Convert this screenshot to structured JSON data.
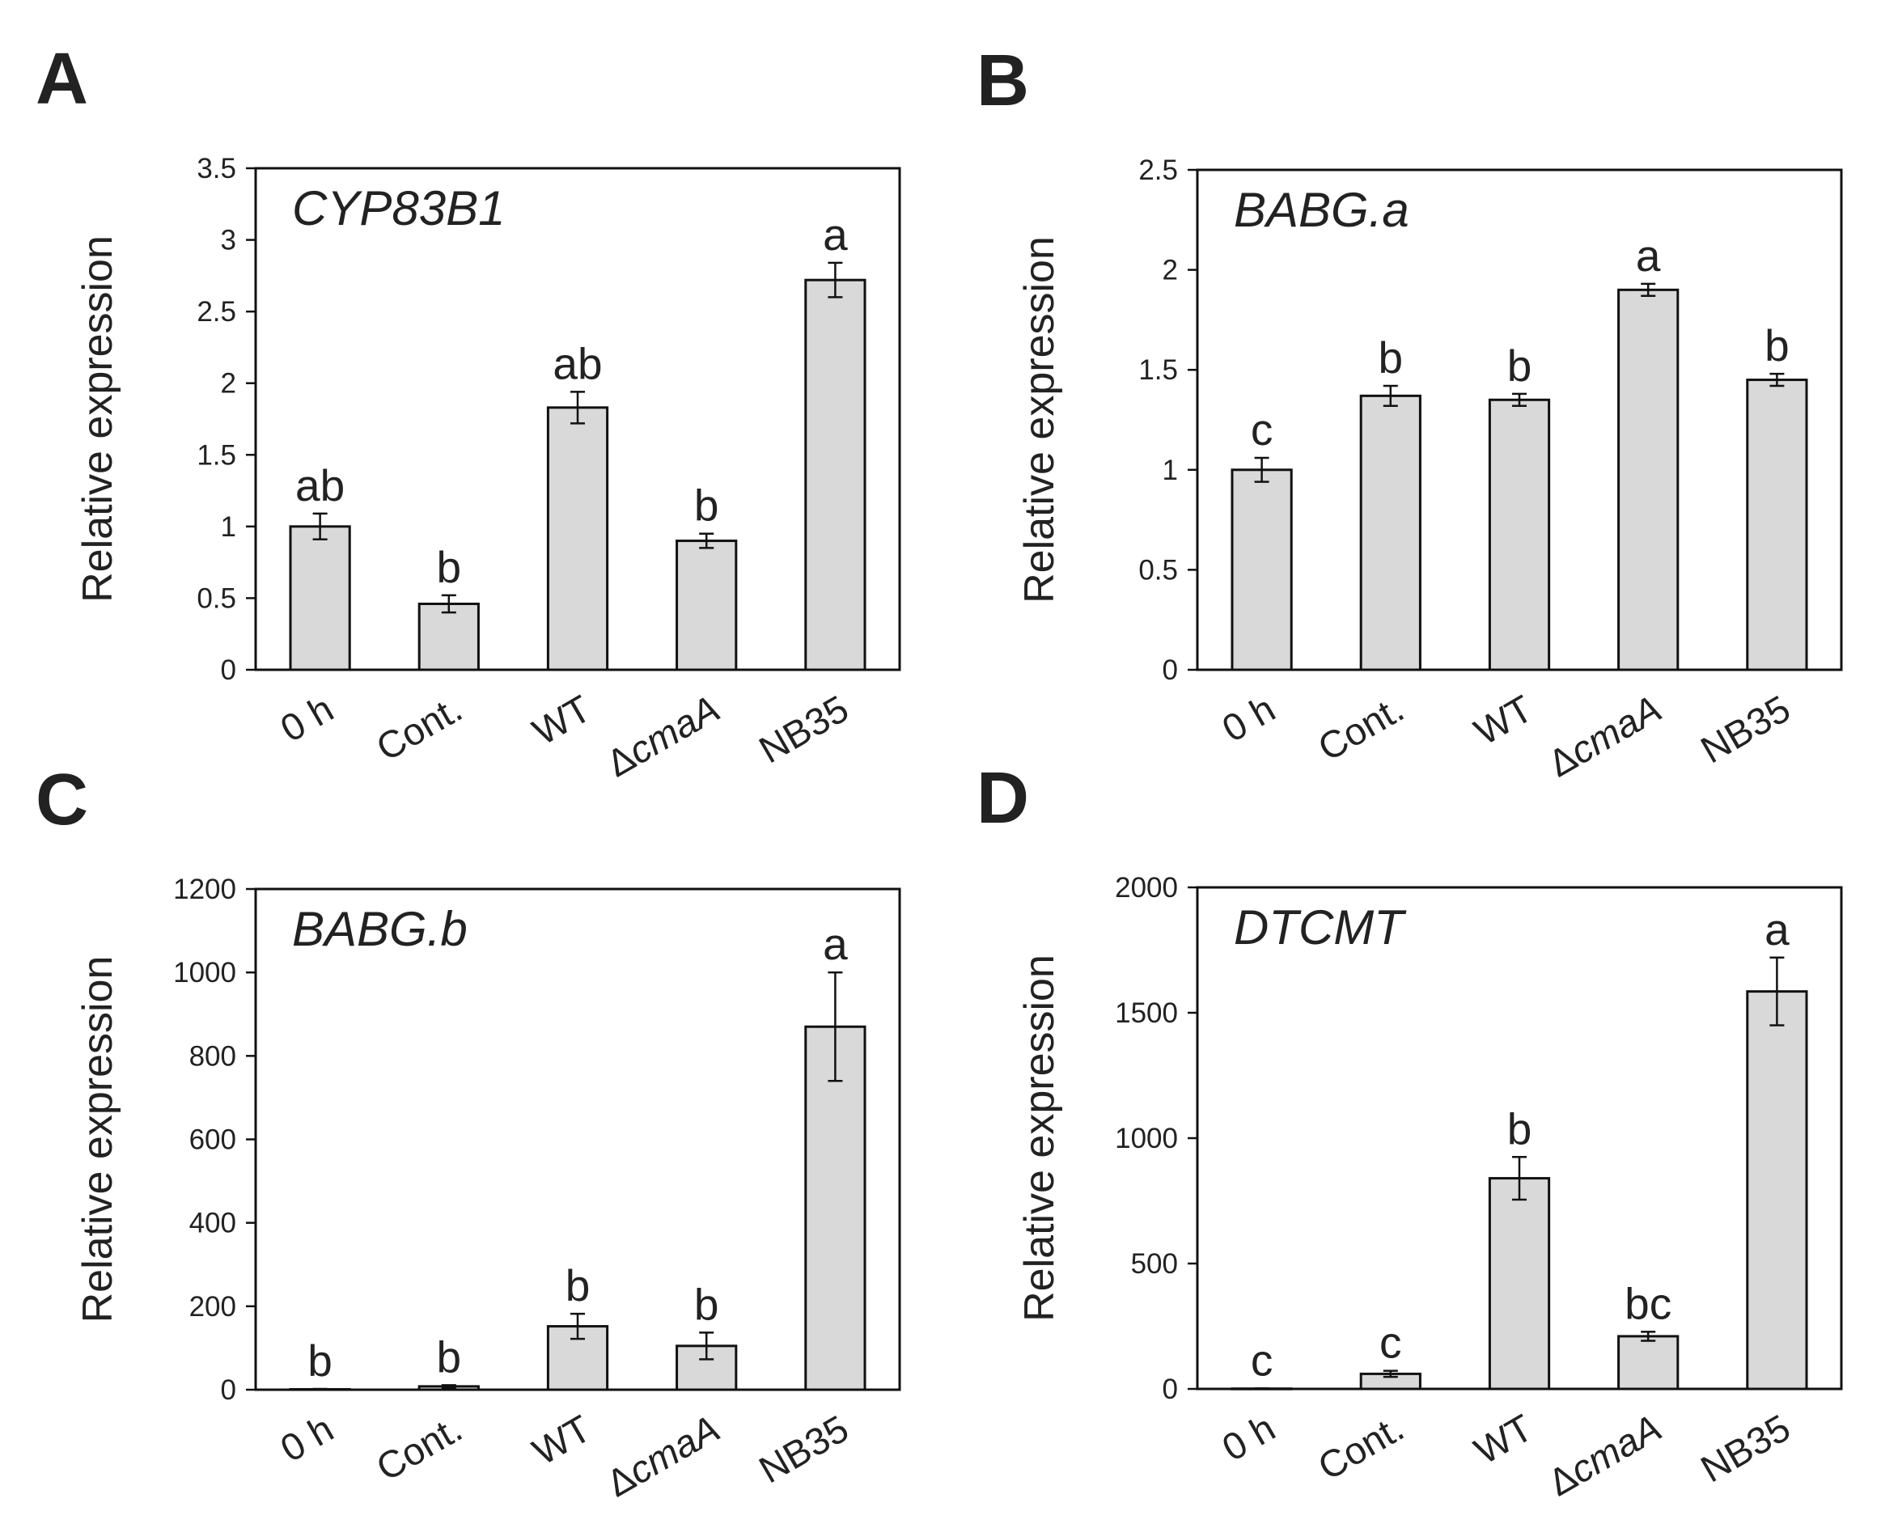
{
  "figure": {
    "categories": [
      "0 h",
      "Cont.",
      "WT",
      "ΔcmaA",
      "NB35"
    ],
    "ylabel": "Relative expression",
    "bar_color": "#d9d9d9",
    "edge_color": "#111111"
  },
  "chart_data": [
    {
      "panel": "A",
      "type": "bar",
      "title": "CYP83B1",
      "categories": [
        "0 h",
        "Cont.",
        "WT",
        "ΔcmaA",
        "NB35"
      ],
      "values": [
        1.0,
        0.46,
        1.83,
        0.9,
        2.72
      ],
      "errors": [
        0.09,
        0.06,
        0.11,
        0.05,
        0.12
      ],
      "letters": [
        "ab",
        "b",
        "ab",
        "b",
        "a"
      ],
      "ylabel": "Relative expression",
      "ylim": [
        0,
        3.5
      ],
      "yticks": [
        0,
        0.5,
        1,
        1.5,
        2,
        2.5,
        3,
        3.5
      ],
      "ytick_labels": [
        "0",
        "0.5",
        "1",
        "1.5",
        "2",
        "2.5",
        "3",
        "3.5"
      ]
    },
    {
      "panel": "B",
      "type": "bar",
      "title": "BABG.a",
      "categories": [
        "0 h",
        "Cont.",
        "WT",
        "ΔcmaA",
        "NB35"
      ],
      "values": [
        1.0,
        1.37,
        1.35,
        1.9,
        1.45
      ],
      "errors": [
        0.06,
        0.05,
        0.03,
        0.03,
        0.03
      ],
      "letters": [
        "c",
        "b",
        "b",
        "a",
        "b"
      ],
      "ylabel": "Relative expression",
      "ylim": [
        0,
        2.5
      ],
      "yticks": [
        0,
        0.5,
        1,
        1.5,
        2,
        2.5
      ],
      "ytick_labels": [
        "0",
        "0.5",
        "1",
        "1.5",
        "2",
        "2.5"
      ]
    },
    {
      "panel": "C",
      "type": "bar",
      "title": "BABG.b",
      "categories": [
        "0 h",
        "Cont.",
        "WT",
        "ΔcmaA",
        "NB35"
      ],
      "values": [
        1,
        8,
        152,
        105,
        870
      ],
      "errors": [
        1,
        3,
        30,
        32,
        130
      ],
      "letters": [
        "b",
        "b",
        "b",
        "b",
        "a"
      ],
      "ylabel": "Relative expression",
      "ylim": [
        0,
        1200
      ],
      "yticks": [
        0,
        200,
        400,
        600,
        800,
        1000,
        1200
      ],
      "ytick_labels": [
        "0",
        "200",
        "400",
        "600",
        "800",
        "1000",
        "1200"
      ]
    },
    {
      "panel": "D",
      "type": "bar",
      "title": "DTCMT",
      "categories": [
        "0 h",
        "Cont.",
        "WT",
        "ΔcmaA",
        "NB35"
      ],
      "values": [
        1,
        60,
        840,
        210,
        1585
      ],
      "errors": [
        1,
        12,
        85,
        18,
        135
      ],
      "letters": [
        "c",
        "c",
        "b",
        "bc",
        "a"
      ],
      "ylabel": "Relative expression",
      "ylim": [
        0,
        2000
      ],
      "yticks": [
        0,
        500,
        1000,
        1500,
        2000
      ],
      "ytick_labels": [
        "0",
        "500",
        "1000",
        "1500",
        "2000"
      ]
    }
  ]
}
